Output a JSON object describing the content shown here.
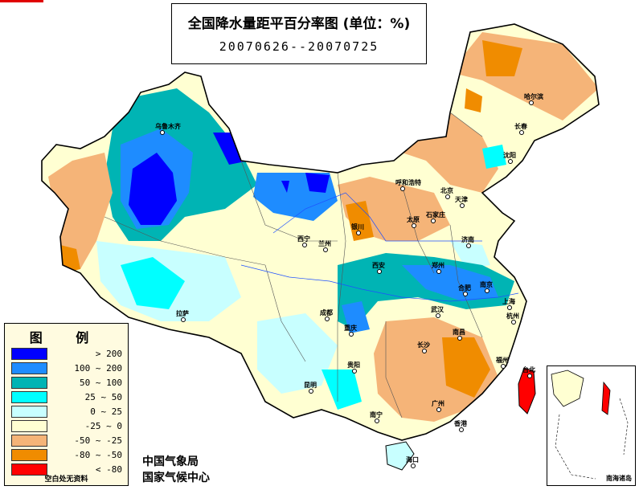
{
  "title": "全国降水量距平百分率图 (单位：%)",
  "date_range": "20070626--20070725",
  "legend": {
    "title": "图 例",
    "items": [
      {
        "range": "> 200",
        "color": "#0000ff"
      },
      {
        "range": "100 ~ 200",
        "color": "#1e8cff"
      },
      {
        "range": "50 ~ 100",
        "color": "#00b4b4"
      },
      {
        "range": "25 ~ 50",
        "color": "#00ffff"
      },
      {
        "range": "0 ~ 25",
        "color": "#c8ffff"
      },
      {
        "range": "-25 ~ 0",
        "color": "#ffffd2"
      },
      {
        "range": "-50 ~ -25",
        "color": "#f5b478"
      },
      {
        "range": "-80 ~ -50",
        "color": "#f08c00"
      },
      {
        "range": "< -80",
        "color": "#ff0000"
      }
    ],
    "no_data_note": "空白处无资料"
  },
  "agency_line1": "中国气象局",
  "agency_line2": "国家气候中心",
  "inset_label": "南海诸岛",
  "cities": [
    {
      "name": "乌鲁木齐"
    },
    {
      "name": "哈尔滨"
    },
    {
      "name": "长春"
    },
    {
      "name": "沈阳"
    },
    {
      "name": "呼和浩特"
    },
    {
      "name": "北京"
    },
    {
      "name": "天津"
    },
    {
      "name": "石家庄"
    },
    {
      "name": "太原"
    },
    {
      "name": "银川"
    },
    {
      "name": "西宁"
    },
    {
      "name": "兰州"
    },
    {
      "name": "济南"
    },
    {
      "name": "郑州"
    },
    {
      "name": "西安"
    },
    {
      "name": "合肥"
    },
    {
      "name": "南京"
    },
    {
      "name": "上海"
    },
    {
      "name": "武汉"
    },
    {
      "name": "杭州"
    },
    {
      "name": "拉萨"
    },
    {
      "name": "成都"
    },
    {
      "name": "重庆"
    },
    {
      "name": "长沙"
    },
    {
      "name": "南昌"
    },
    {
      "name": "福州"
    },
    {
      "name": "贵阳"
    },
    {
      "name": "昆明"
    },
    {
      "name": "南宁"
    },
    {
      "name": "广州"
    },
    {
      "name": "香港"
    },
    {
      "name": "海口"
    },
    {
      "name": "台北"
    }
  ]
}
